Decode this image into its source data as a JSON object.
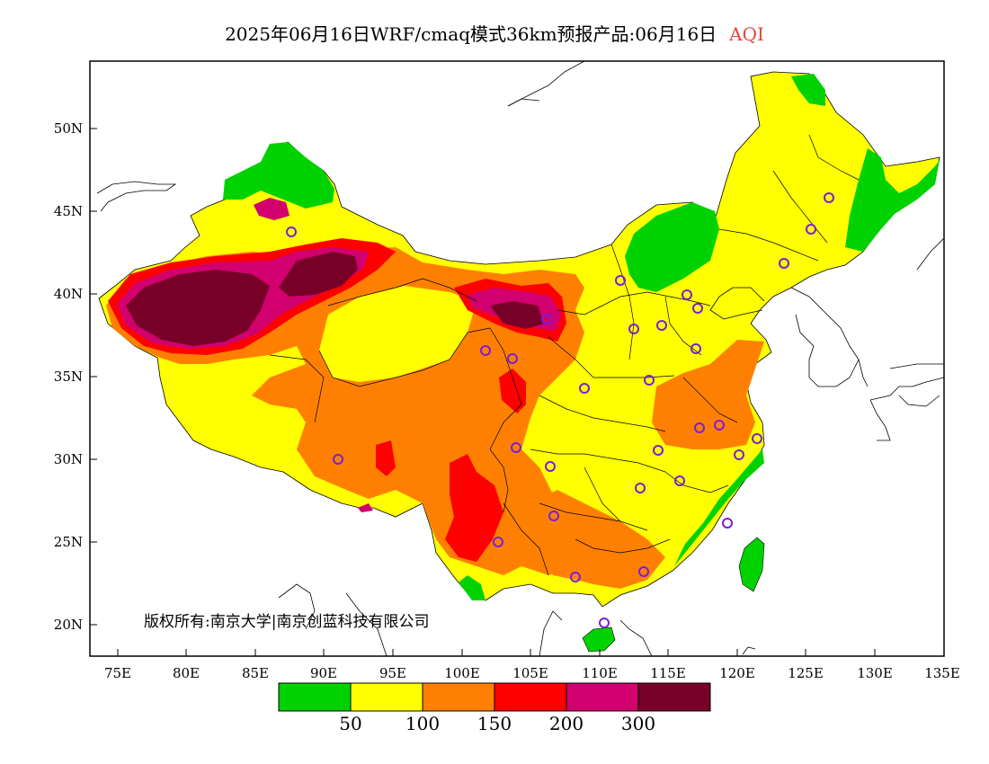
{
  "title": {
    "main": "2025年06月16日WRF/cmaq模式36km预报产品:06月16日",
    "variable": "AQI"
  },
  "copyright": "版权所有:南京大学|南京创蓝科技有限公司",
  "axes": {
    "lat_ticks": [
      "50N",
      "45N",
      "40N",
      "35N",
      "30N",
      "25N",
      "20N"
    ],
    "lon_ticks": [
      "75E",
      "80E",
      "85E",
      "90E",
      "95E",
      "100E",
      "105E",
      "110E",
      "115E",
      "120E",
      "125E",
      "130E",
      "135E"
    ]
  },
  "legend": {
    "colors": [
      "#00d200",
      "#ffff00",
      "#ff8000",
      "#ff0000",
      "#d2006e",
      "#780028"
    ],
    "breaks": [
      "50",
      "100",
      "150",
      "200",
      "300"
    ]
  },
  "station_marker_color": "#7a1fd6",
  "boundary_color": "#000000"
}
